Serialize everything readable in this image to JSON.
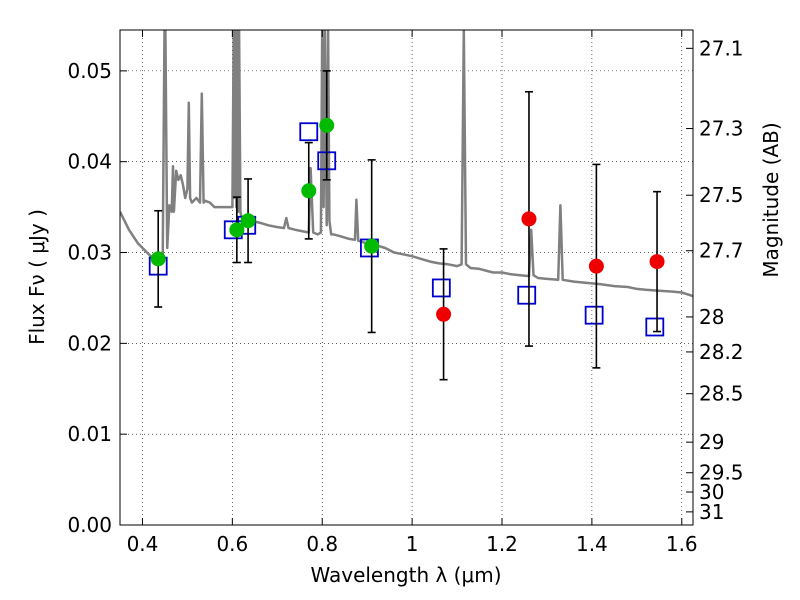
{
  "chart_data": {
    "type": "scatter",
    "title": "",
    "xlabel": "Wavelength  λ (μm)",
    "ylabel": "Flux  Fν  ( μJy )",
    "ylabel_right": "Magnitude (AB)",
    "xlim": [
      0.35,
      1.625
    ],
    "ylim": [
      0.0,
      0.0545
    ],
    "grid": true,
    "x_ticks": [
      0.4,
      0.6,
      0.8,
      1.0,
      1.2,
      1.4,
      1.6
    ],
    "x_tick_labels": [
      "0.4",
      "0.6",
      "0.8",
      "1",
      "1.2",
      "1.4",
      "1.6"
    ],
    "y_ticks": [
      0.0,
      0.01,
      0.02,
      0.03,
      0.04,
      0.05
    ],
    "y_tick_labels": [
      "0.00",
      "0.01",
      "0.02",
      "0.03",
      "0.04",
      "0.05"
    ],
    "right_ticks": [
      {
        "label": "27.1",
        "mag": 27.1
      },
      {
        "label": "27.3",
        "mag": 27.3
      },
      {
        "label": "27.5",
        "mag": 27.5
      },
      {
        "label": "27.7",
        "mag": 27.7
      },
      {
        "label": "28",
        "mag": 28.0
      },
      {
        "label": "28.2",
        "mag": 28.2
      },
      {
        "label": "28.5",
        "mag": 28.5
      },
      {
        "label": "29",
        "mag": 29.0
      },
      {
        "label": "29.5",
        "mag": 29.5
      },
      {
        "label": "30",
        "mag": 30.0
      },
      {
        "label": "31",
        "mag": 31.0
      }
    ],
    "series": [
      {
        "kind": "line",
        "color": "#808080",
        "x": [
          0.35,
          0.37,
          0.39,
          0.41,
          0.43,
          0.44,
          0.445,
          0.449,
          0.451,
          0.455,
          0.46,
          0.465,
          0.468,
          0.47,
          0.475,
          0.48,
          0.485,
          0.49,
          0.495,
          0.5,
          0.503,
          0.506,
          0.51,
          0.52,
          0.528,
          0.532,
          0.536,
          0.54,
          0.55,
          0.56,
          0.58,
          0.6,
          0.603,
          0.605,
          0.607,
          0.609,
          0.611,
          0.613,
          0.615,
          0.618,
          0.62,
          0.63,
          0.64,
          0.66,
          0.68,
          0.7,
          0.715,
          0.72,
          0.725,
          0.74,
          0.76,
          0.77,
          0.774,
          0.78,
          0.79,
          0.797,
          0.8,
          0.803,
          0.806,
          0.81,
          0.813,
          0.816,
          0.82,
          0.825,
          0.84,
          0.86,
          0.873,
          0.876,
          0.88,
          0.9,
          0.92,
          0.94,
          0.96,
          0.98,
          1.0,
          1.02,
          1.04,
          1.06,
          1.08,
          1.1,
          1.11,
          1.115,
          1.12,
          1.13,
          1.15,
          1.18,
          1.2,
          1.22,
          1.24,
          1.26,
          1.265,
          1.27,
          1.28,
          1.3,
          1.325,
          1.33,
          1.335,
          1.36,
          1.38,
          1.4,
          1.42,
          1.45,
          1.48,
          1.5,
          1.52,
          1.55,
          1.58,
          1.6,
          1.625
        ],
        "y": [
          0.0345,
          0.0325,
          0.031,
          0.03,
          0.029,
          0.0288,
          0.0293,
          0.0545,
          0.0545,
          0.0305,
          0.0352,
          0.0345,
          0.0395,
          0.0345,
          0.039,
          0.038,
          0.0385,
          0.0375,
          0.036,
          0.037,
          0.0465,
          0.036,
          0.0355,
          0.036,
          0.0355,
          0.0475,
          0.0355,
          0.0357,
          0.0355,
          0.035,
          0.035,
          0.035,
          0.0545,
          0.036,
          0.0545,
          0.035,
          0.0545,
          0.0345,
          0.0545,
          0.0345,
          0.034,
          0.0335,
          0.0335,
          0.0333,
          0.033,
          0.0328,
          0.0327,
          0.0338,
          0.0327,
          0.0325,
          0.0323,
          0.0322,
          0.0393,
          0.0322,
          0.032,
          0.0322,
          0.0545,
          0.035,
          0.0545,
          0.033,
          0.0545,
          0.0335,
          0.032,
          0.032,
          0.0318,
          0.0315,
          0.0314,
          0.0358,
          0.0313,
          0.031,
          0.0308,
          0.0305,
          0.03,
          0.0298,
          0.0296,
          0.0293,
          0.029,
          0.0288,
          0.0287,
          0.0285,
          0.0287,
          0.0545,
          0.0287,
          0.0283,
          0.0282,
          0.0278,
          0.0278,
          0.0276,
          0.0275,
          0.0274,
          0.0325,
          0.0275,
          0.0272,
          0.0271,
          0.027,
          0.0352,
          0.027,
          0.0268,
          0.0267,
          0.0266,
          0.0265,
          0.0263,
          0.0262,
          0.026,
          0.0259,
          0.0258,
          0.0257,
          0.0256,
          0.0252
        ]
      },
      {
        "kind": "open-square",
        "color": "#0000cc",
        "x": [
          0.435,
          0.602,
          0.632,
          0.77,
          0.81,
          0.905,
          1.065,
          1.255,
          1.405,
          1.54
        ],
        "y": [
          0.0285,
          0.0325,
          0.033,
          0.0433,
          0.0401,
          0.0305,
          0.0261,
          0.0253,
          0.0231,
          0.0218
        ]
      },
      {
        "kind": "errorbar",
        "color": "#000000",
        "x": [
          0.435,
          0.61,
          0.635,
          0.77,
          0.81,
          0.91,
          1.07,
          1.26,
          1.41,
          1.545
        ],
        "y": [
          0.0293,
          0.0325,
          0.0335,
          0.0368,
          0.044,
          0.0307,
          0.0232,
          0.0337,
          0.0285,
          0.029
        ],
        "yerr": [
          0.0053,
          0.0036,
          0.0046,
          0.0053,
          0.006,
          0.0095,
          0.0072,
          0.014,
          0.0112,
          0.0077
        ]
      },
      {
        "kind": "filled-circle",
        "color": "#00bb00",
        "x": [
          0.435,
          0.61,
          0.635,
          0.77,
          0.81,
          0.91
        ],
        "y": [
          0.0293,
          0.0325,
          0.0335,
          0.0368,
          0.044,
          0.0307
        ]
      },
      {
        "kind": "filled-circle",
        "color": "#ee0000",
        "x": [
          1.07,
          1.26,
          1.41,
          1.545
        ],
        "y": [
          0.0232,
          0.0337,
          0.0285,
          0.029
        ]
      }
    ]
  }
}
